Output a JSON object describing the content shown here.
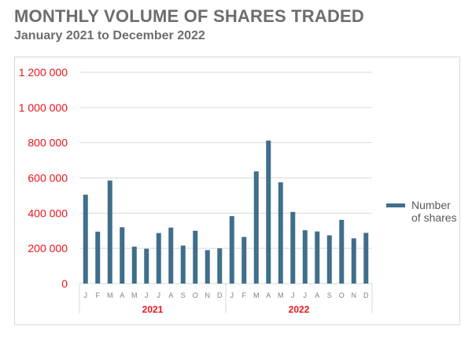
{
  "title": "MONTHLY VOLUME OF SHARES TRADED",
  "subtitle": "January 2021 to December 2022",
  "chart_data": {
    "type": "bar",
    "title": "MONTHLY VOLUME OF SHARES TRADED",
    "subtitle": "January 2021 to December 2022",
    "xlabel": "",
    "ylabel": "",
    "ylim": [
      0,
      1200000
    ],
    "yticks": [
      0,
      200000,
      400000,
      600000,
      800000,
      1000000,
      1200000
    ],
    "ytick_labels": [
      "0",
      "200 000",
      "400 000",
      "600 000",
      "800 000",
      "1 000 000",
      "1 200 000"
    ],
    "categories": [
      "J",
      "F",
      "M",
      "A",
      "M",
      "J",
      "J",
      "A",
      "S",
      "O",
      "N",
      "D",
      "J",
      "F",
      "M",
      "A",
      "M",
      "J",
      "J",
      "A",
      "S",
      "O",
      "N",
      "D"
    ],
    "year_groups": [
      {
        "label": "2021",
        "start": 0,
        "end": 11
      },
      {
        "label": "2022",
        "start": 12,
        "end": 23
      }
    ],
    "series": [
      {
        "name": "Number of shares",
        "color": "#3f6f8a",
        "values": [
          505000,
          295000,
          585000,
          320000,
          210000,
          198000,
          287000,
          318000,
          216000,
          300000,
          190000,
          200000,
          383000,
          265000,
          637000,
          812000,
          575000,
          407000,
          303000,
          296000,
          274000,
          362000,
          257000,
          288000
        ]
      }
    ],
    "grid": true,
    "legend": "right",
    "legend_label_lines": [
      "Number",
      "of shares"
    ],
    "colors": {
      "bar": "#3f6f8a",
      "ytick": "#e8141b",
      "year": "#e8141b",
      "grid": "#d9d9d9",
      "month": "#7f7f7f"
    }
  }
}
